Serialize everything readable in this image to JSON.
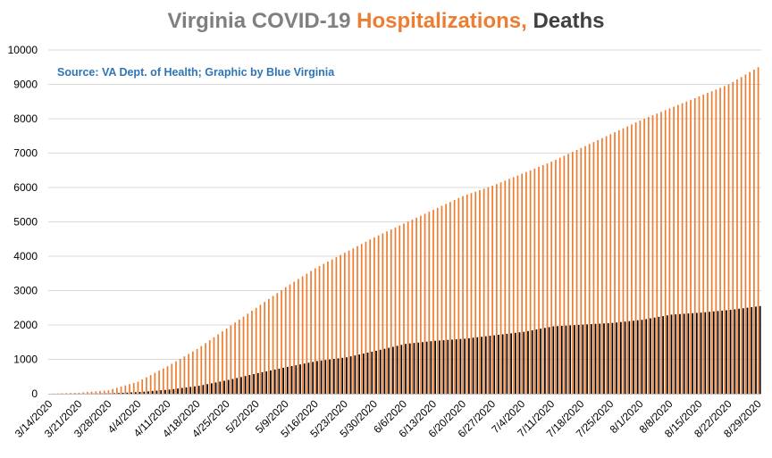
{
  "title": {
    "part1": "Virginia COVID-19 ",
    "part2": "Hospitalizations,",
    "part3": " Deaths",
    "color_main": "#7f7f7f",
    "color_hosp": "#ed7d31",
    "color_deaths": "#404040"
  },
  "source_note": {
    "text": "Source: VA Dept. of Health; Graphic by Blue Virginia",
    "color": "#2e75b6"
  },
  "chart_data": {
    "type": "bar",
    "start_date": "3/14/2020",
    "end_date": "8/29/2020",
    "xtick_labels": [
      "3/14/2020",
      "3/21/2020",
      "3/28/2020",
      "4/4/2020",
      "4/11/2020",
      "4/18/2020",
      "4/25/2020",
      "5/2/2020",
      "5/9/2020",
      "5/16/2020",
      "5/23/2020",
      "5/30/2020",
      "6/6/2020",
      "6/13/2020",
      "6/20/2020",
      "6/27/2020",
      "7/4/2020",
      "7/11/2020",
      "7/18/2020",
      "7/25/2020",
      "8/1/2020",
      "8/8/2020",
      "8/15/2020",
      "8/22/2020",
      "8/29/2020"
    ],
    "ylim": [
      0,
      10000
    ],
    "yticks": [
      0,
      1000,
      2000,
      3000,
      4000,
      5000,
      6000,
      7000,
      8000,
      9000,
      10000
    ],
    "grid": true,
    "series": [
      {
        "name": "Hospitalizations",
        "color": "#ed7d31",
        "anchors": [
          [
            "3/14/2020",
            0
          ],
          [
            "3/21/2020",
            30
          ],
          [
            "3/28/2020",
            100
          ],
          [
            "4/4/2020",
            350
          ],
          [
            "4/11/2020",
            800
          ],
          [
            "4/18/2020",
            1300
          ],
          [
            "4/25/2020",
            1900
          ],
          [
            "5/2/2020",
            2500
          ],
          [
            "5/9/2020",
            3100
          ],
          [
            "5/16/2020",
            3650
          ],
          [
            "5/23/2020",
            4100
          ],
          [
            "5/30/2020",
            4550
          ],
          [
            "6/6/2020",
            4950
          ],
          [
            "6/13/2020",
            5350
          ],
          [
            "6/20/2020",
            5750
          ],
          [
            "6/27/2020",
            6050
          ],
          [
            "7/4/2020",
            6400
          ],
          [
            "7/11/2020",
            6750
          ],
          [
            "7/18/2020",
            7150
          ],
          [
            "7/25/2020",
            7550
          ],
          [
            "8/1/2020",
            7950
          ],
          [
            "8/8/2020",
            8300
          ],
          [
            "8/15/2020",
            8650
          ],
          [
            "8/22/2020",
            9000
          ],
          [
            "8/29/2020",
            9500
          ]
        ]
      },
      {
        "name": "Deaths",
        "color": "#000000",
        "anchors": [
          [
            "3/14/2020",
            0
          ],
          [
            "3/21/2020",
            2
          ],
          [
            "3/28/2020",
            10
          ],
          [
            "4/4/2020",
            50
          ],
          [
            "4/11/2020",
            120
          ],
          [
            "4/18/2020",
            230
          ],
          [
            "4/25/2020",
            400
          ],
          [
            "5/2/2020",
            600
          ],
          [
            "5/9/2020",
            780
          ],
          [
            "5/16/2020",
            950
          ],
          [
            "5/23/2020",
            1060
          ],
          [
            "5/30/2020",
            1250
          ],
          [
            "6/6/2020",
            1450
          ],
          [
            "6/13/2020",
            1540
          ],
          [
            "6/20/2020",
            1600
          ],
          [
            "6/27/2020",
            1700
          ],
          [
            "7/4/2020",
            1800
          ],
          [
            "7/11/2020",
            1960
          ],
          [
            "7/18/2020",
            2010
          ],
          [
            "7/25/2020",
            2060
          ],
          [
            "8/1/2020",
            2150
          ],
          [
            "8/8/2020",
            2300
          ],
          [
            "8/15/2020",
            2360
          ],
          [
            "8/22/2020",
            2440
          ],
          [
            "8/29/2020",
            2550
          ]
        ]
      }
    ]
  }
}
